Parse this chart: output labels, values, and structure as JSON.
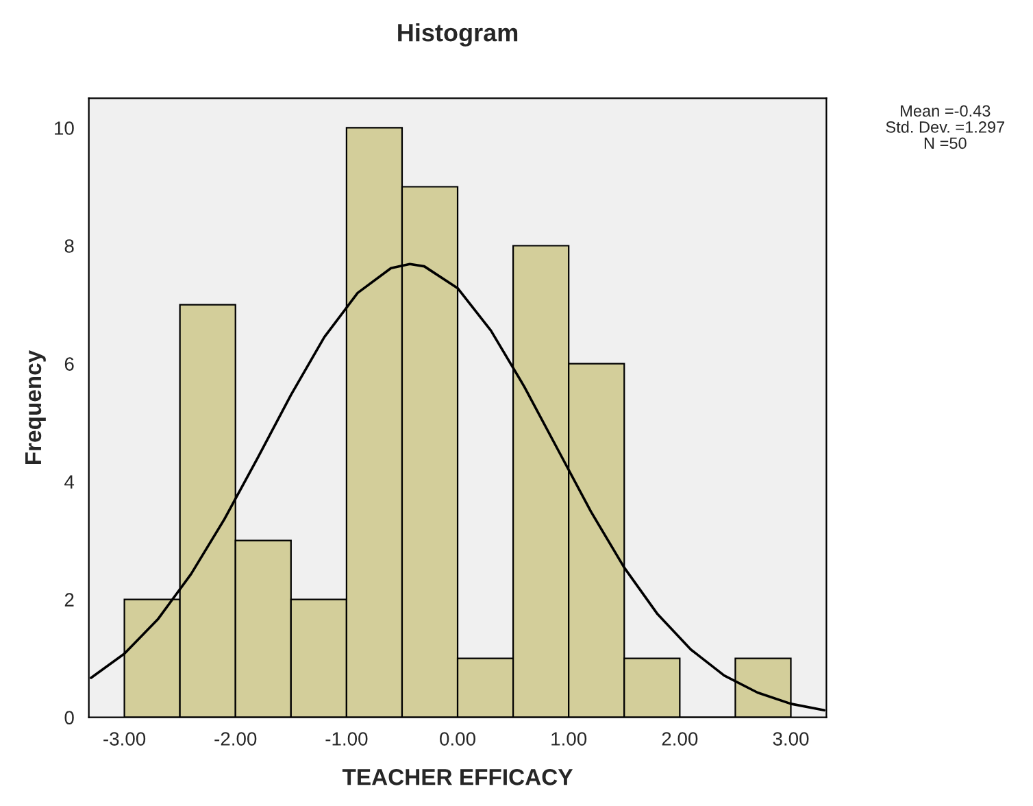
{
  "chart_data": {
    "type": "histogram",
    "title": "Histogram",
    "xlabel": "TEACHER EFFICACY",
    "ylabel": "Frequency",
    "series": [
      {
        "type": "histogram",
        "color": "#d3ce9a",
        "bins": [
          -3.0,
          -2.5,
          -2.0,
          -1.5,
          -1.0,
          -0.5,
          0.0,
          0.5,
          1.0,
          1.5,
          2.0,
          2.5,
          3.0
        ],
        "values": [
          2,
          7,
          3,
          2,
          10,
          9,
          1,
          8,
          6,
          1,
          0,
          1
        ]
      },
      {
        "type": "line",
        "color": "#000000",
        "x": [
          -3.3,
          -3.0,
          -2.7,
          -2.4,
          -2.1,
          -1.8,
          -1.5,
          -1.2,
          -0.9,
          -0.6,
          -0.43,
          -0.3,
          0.0,
          0.3,
          0.6,
          0.9,
          1.2,
          1.5,
          1.8,
          2.1,
          2.4,
          2.7,
          3.0,
          3.3
        ],
        "values": [
          0.67,
          1.08,
          1.66,
          2.43,
          3.36,
          4.4,
          5.47,
          6.45,
          7.2,
          7.62,
          7.69,
          7.65,
          7.28,
          6.56,
          5.61,
          4.55,
          3.49,
          2.54,
          1.75,
          1.15,
          0.71,
          0.42,
          0.23,
          0.12
        ]
      }
    ],
    "xlim": [
      -3.32,
      3.32
    ],
    "ylim": [
      0,
      10.5
    ],
    "xticks": [
      {
        "value": -3,
        "label": "-3.00"
      },
      {
        "value": -2,
        "label": "-2.00"
      },
      {
        "value": -1,
        "label": "-1.00"
      },
      {
        "value": 0,
        "label": "0.00"
      },
      {
        "value": 1,
        "label": "1.00"
      },
      {
        "value": 2,
        "label": "2.00"
      },
      {
        "value": 3,
        "label": "3.00"
      }
    ],
    "yticks": [
      0,
      2,
      4,
      6,
      8,
      10
    ],
    "annotations": [
      "Mean =-0.43",
      "Std. Dev. =1.297",
      "N =50"
    ],
    "grid": false,
    "legend": false
  }
}
